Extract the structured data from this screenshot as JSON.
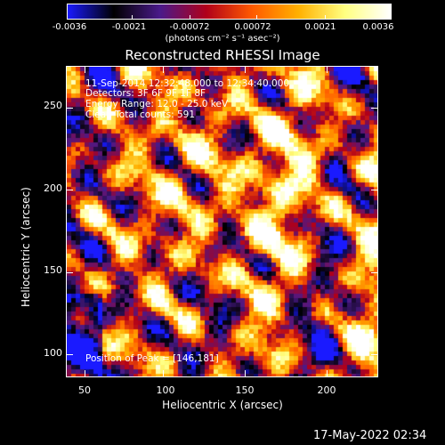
{
  "colorbar": {
    "ticks": [
      "-0.0036",
      "-0.0021",
      "-0.00072",
      "0.00072",
      "0.0021",
      "0.0036"
    ],
    "unit_label": "(photons cm⁻² s⁻¹ asec⁻²)"
  },
  "plot": {
    "title": "Reconstructed RHESSI Image",
    "xlabel": "Heliocentric X (arcsec)",
    "ylabel": "Heliocentric Y (arcsec)",
    "x_ticks": [
      "50",
      "100",
      "150",
      "200"
    ],
    "y_ticks": [
      "100",
      "150",
      "200",
      "250"
    ],
    "annotations": {
      "time_range": "11-Sep-2014 12:32:48.000 to 12:34:40.000",
      "detectors": "Detectors: 3F 6F 9F 1F 8F",
      "energy": "Energy Range: 12.0 - 25.0 keV",
      "clean": "Clean     Total counts: 591",
      "peak": "Position of Peak = [146,181]"
    }
  },
  "footer": {
    "date": "17-May-2022 02:34"
  },
  "colors": {
    "colormap": [
      "#1a1aff",
      "#000000",
      "#4a1a8a",
      "#b0001a",
      "#ff5a00",
      "#ffb000",
      "#ffff80",
      "#ffffff"
    ]
  }
}
